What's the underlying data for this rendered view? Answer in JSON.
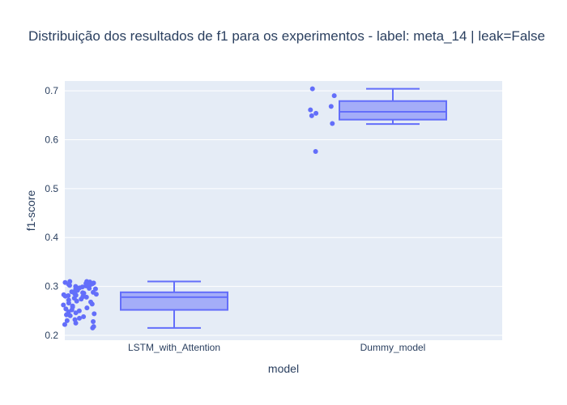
{
  "chart_data": {
    "type": "box",
    "title": "Distribuição dos resultados de f1 para os experimentos - label: meta_14 | leak=False",
    "xlabel": "model",
    "ylabel": "f1-score",
    "ylim": [
      0.19,
      0.72
    ],
    "yticks": [
      0.2,
      0.3,
      0.4,
      0.5,
      0.6,
      0.7
    ],
    "ytick_labels": [
      "0.2",
      "0.3",
      "0.4",
      "0.5",
      "0.6",
      "0.7"
    ],
    "categories": [
      "LSTM_with_Attention",
      "Dummy_model"
    ],
    "grid": true,
    "colors": {
      "box_line": "#636efa",
      "box_fill": "#636efa",
      "plot_bg": "#e5ecf6",
      "grid": "#ffffff",
      "text": "#2a3f5f"
    },
    "boxes": [
      {
        "category": "LSTM_with_Attention",
        "min": 0.215,
        "q1": 0.252,
        "median": 0.278,
        "q3": 0.288,
        "max": 0.31,
        "points": [
          0.215,
          0.218,
          0.222,
          0.225,
          0.228,
          0.23,
          0.232,
          0.235,
          0.238,
          0.24,
          0.242,
          0.244,
          0.246,
          0.248,
          0.25,
          0.252,
          0.254,
          0.256,
          0.258,
          0.26,
          0.262,
          0.264,
          0.266,
          0.268,
          0.27,
          0.272,
          0.274,
          0.276,
          0.278,
          0.279,
          0.28,
          0.281,
          0.282,
          0.283,
          0.284,
          0.285,
          0.286,
          0.287,
          0.288,
          0.289,
          0.29,
          0.292,
          0.294,
          0.296,
          0.298,
          0.3,
          0.302,
          0.304,
          0.306,
          0.308,
          0.31,
          0.31,
          0.309,
          0.307,
          0.305,
          0.303,
          0.301,
          0.299,
          0.297,
          0.295
        ]
      },
      {
        "category": "Dummy_model",
        "min": 0.632,
        "q1": 0.641,
        "median": 0.657,
        "q3": 0.679,
        "max": 0.704,
        "points": [
          0.704,
          0.69,
          0.668,
          0.661,
          0.654,
          0.649,
          0.633,
          0.576
        ]
      }
    ]
  }
}
